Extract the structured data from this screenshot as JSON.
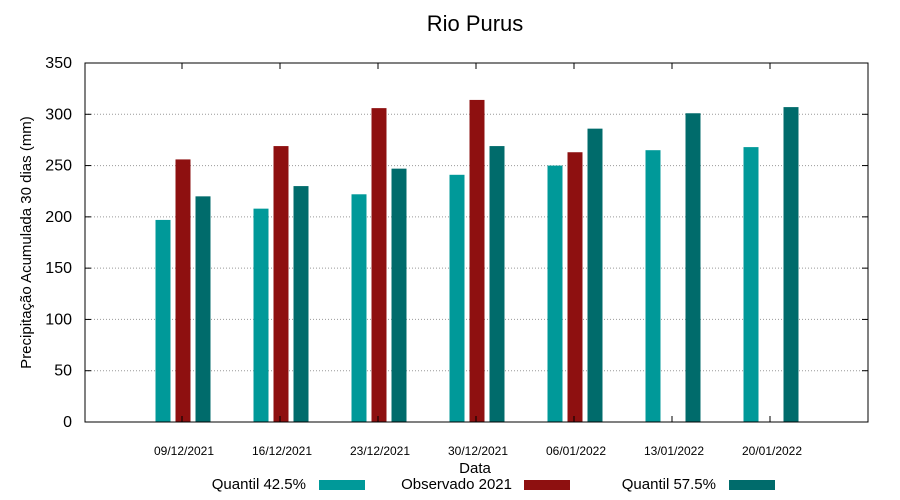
{
  "chart_data": {
    "type": "bar",
    "title": "Rio Purus",
    "xlabel": "Data",
    "ylabel": "Precipitação Acumulada 30 dias (mm)",
    "ylim": [
      0,
      350
    ],
    "yticks": [
      0,
      50,
      100,
      150,
      200,
      250,
      300,
      350
    ],
    "grid": true,
    "legend_position": "bottom",
    "categories": [
      "09/12/2021",
      "16/12/2021",
      "23/12/2021",
      "30/12/2021",
      "06/01/2022",
      "13/01/2022",
      "20/01/2022"
    ],
    "series": [
      {
        "name": "Quantil 42.5%",
        "color": "#009999",
        "values": [
          197,
          208,
          222,
          241,
          250,
          265,
          268
        ]
      },
      {
        "name": "Observado 2021",
        "color": "#8e1010",
        "values": [
          256,
          269,
          306,
          314,
          263,
          null,
          null
        ]
      },
      {
        "name": "Quantil 57.5%",
        "color": "#006b6b",
        "values": [
          220,
          230,
          247,
          269,
          286,
          301,
          307
        ]
      }
    ]
  }
}
